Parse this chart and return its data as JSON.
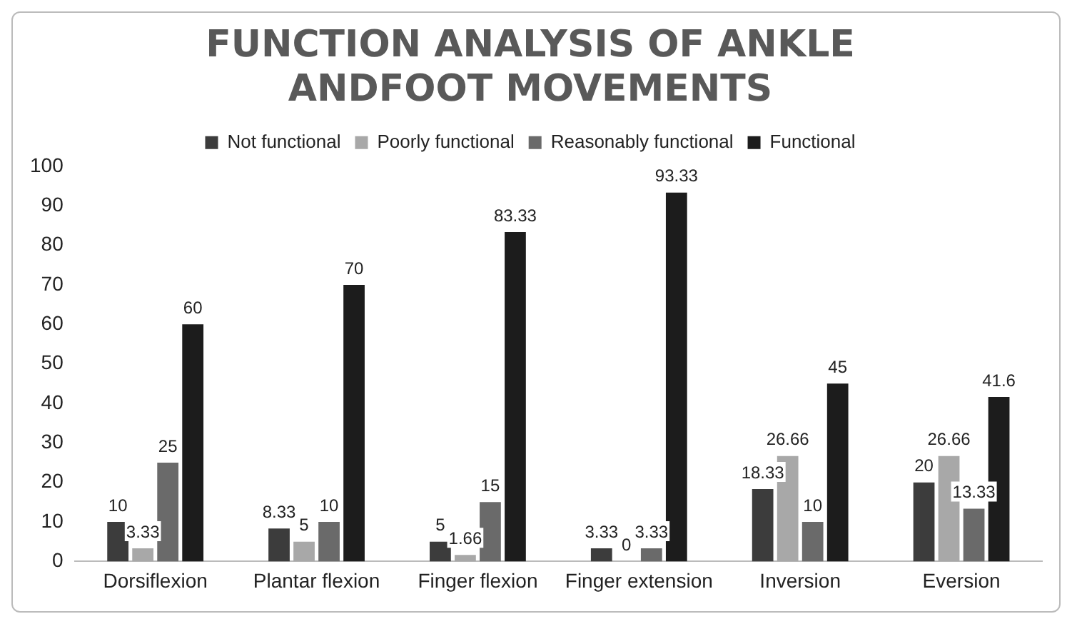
{
  "chart_data": {
    "type": "bar",
    "title": "FUNCTION ANALYSIS OF ANKLE ANDFOOT MOVEMENTS",
    "categories": [
      "Dorsiflexion",
      "Plantar flexion",
      "Finger flexion",
      "Finger extension",
      "Inversion",
      "Eversion"
    ],
    "series": [
      {
        "name": "Not functional",
        "color": "#3c3c3c",
        "values": [
          10,
          8.33,
          5,
          3.33,
          18.33,
          20
        ]
      },
      {
        "name": "Poorly functional",
        "color": "#a8a8a8",
        "values": [
          3.33,
          5,
          1.66,
          0,
          26.66,
          26.66
        ]
      },
      {
        "name": "Reasonably functional",
        "color": "#6a6a6a",
        "values": [
          25,
          10,
          15,
          3.33,
          10,
          13.33
        ]
      },
      {
        "name": "Functional",
        "color": "#1c1c1c",
        "values": [
          60,
          70,
          83.33,
          93.33,
          45,
          41.6
        ]
      }
    ],
    "ylim": [
      0,
      100
    ],
    "yticks": [
      0,
      10,
      20,
      30,
      40,
      50,
      60,
      70,
      80,
      90,
      100
    ],
    "grid": false,
    "legend": "top",
    "data_labels": true
  }
}
